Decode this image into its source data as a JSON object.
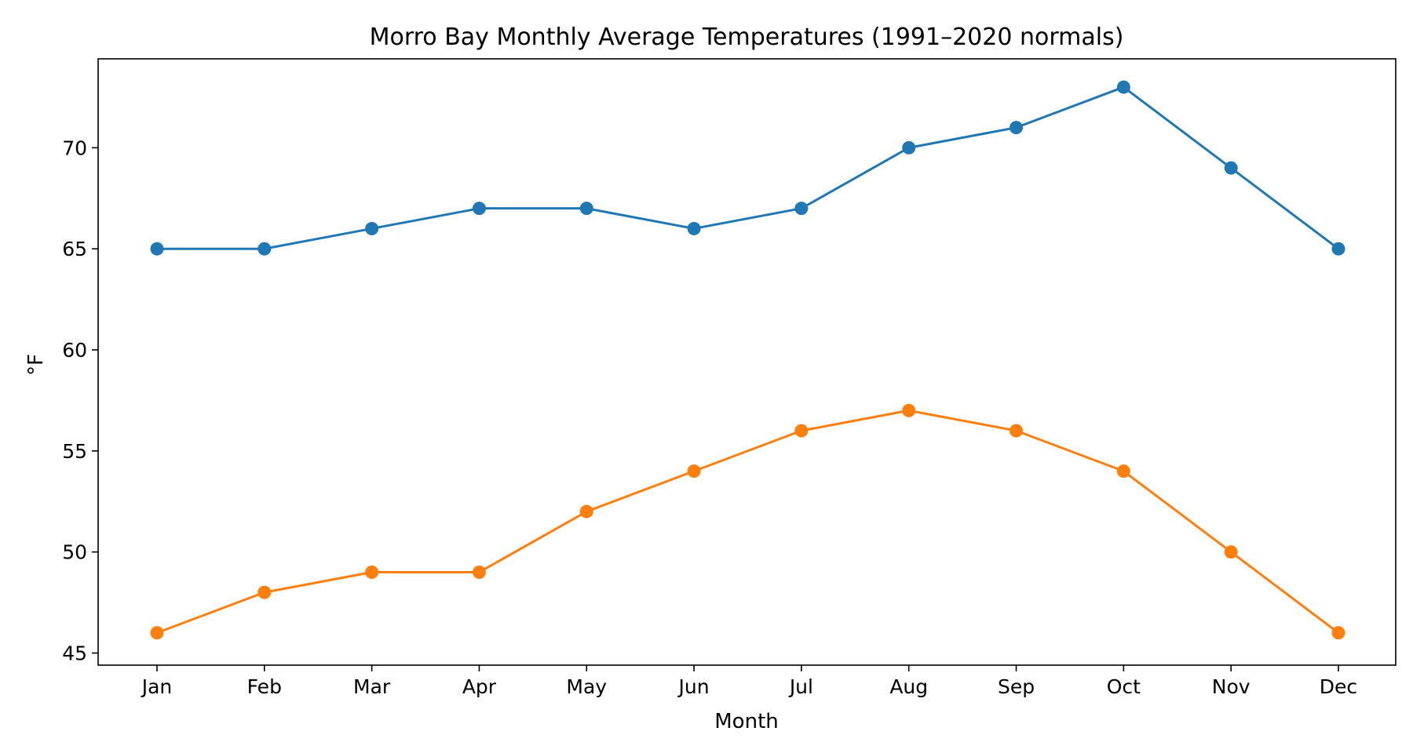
{
  "chart_data": {
    "type": "line",
    "title": "Morro Bay Monthly Average Temperatures (1991–2020 normals)",
    "xlabel": "Month",
    "ylabel": "°F",
    "categories": [
      "Jan",
      "Feb",
      "Mar",
      "Apr",
      "May",
      "Jun",
      "Jul",
      "Aug",
      "Sep",
      "Oct",
      "Nov",
      "Dec"
    ],
    "yticks": [
      45,
      50,
      55,
      60,
      65,
      70
    ],
    "ylim": [
      44.4,
      74.4
    ],
    "grid": false,
    "legend": false,
    "series": [
      {
        "color": "#1f77b4",
        "values": [
          65,
          65,
          66,
          67,
          67,
          66,
          67,
          70,
          71,
          73,
          69,
          65
        ]
      },
      {
        "color": "#ff7f0e",
        "values": [
          46,
          48,
          49,
          49,
          52,
          54,
          56,
          57,
          56,
          54,
          50,
          46
        ]
      }
    ]
  }
}
